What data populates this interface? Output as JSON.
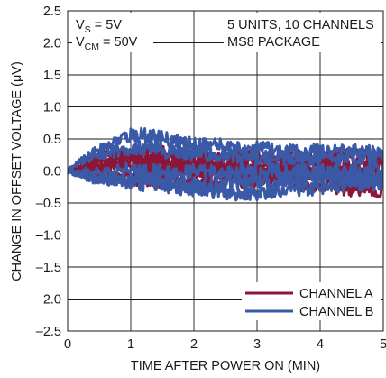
{
  "chart_data": {
    "type": "line",
    "title": "",
    "xlabel": "TIME AFTER POWER ON (MIN)",
    "ylabel": "CHANGE IN OFFSET VOLTAGE (μV)",
    "xlim": [
      0,
      5
    ],
    "ylim": [
      -2.5,
      2.5
    ],
    "x_ticks": [
      "0",
      "1",
      "2",
      "3",
      "4",
      "5"
    ],
    "y_ticks": [
      "2.5",
      "2.0",
      "1.5",
      "1.0",
      "0.5",
      "0.0",
      "–0.5",
      "–1.0",
      "–1.5",
      "–2.0",
      "–2.5"
    ],
    "grid": true,
    "annotations": {
      "vs_main": "V",
      "vs_sub": "S",
      "vs_rest": " = 5V",
      "vcm_main": "V",
      "vcm_sub": "CM",
      "vcm_rest": " = 50V",
      "units_line1": "5 UNITS, 10 CHANNELS",
      "units_line2": "MS8 PACKAGE"
    },
    "legend": "bottom-right",
    "series": [
      {
        "name": "CHANNEL A",
        "color": "#8c1538",
        "x": [
          0,
          0.25,
          0.5,
          0.75,
          1.0,
          1.25,
          1.5,
          1.75,
          2.0,
          2.25,
          2.5,
          2.75,
          3.0,
          3.25,
          3.5,
          3.75,
          4.0,
          4.25,
          4.5,
          4.75,
          5.0
        ],
        "y": [
          0.0,
          0.18,
          0.25,
          0.3,
          0.32,
          0.3,
          0.28,
          0.22,
          0.2,
          0.18,
          0.2,
          0.22,
          0.2,
          0.18,
          0.2,
          0.22,
          0.2,
          0.22,
          0.25,
          0.22,
          0.2
        ]
      },
      {
        "name": "",
        "color": "#8c1538",
        "x": [
          0,
          0.25,
          0.5,
          0.75,
          1.0,
          1.25,
          1.5,
          1.75,
          2.0,
          2.25,
          2.5,
          2.75,
          3.0,
          3.25,
          3.5,
          3.75,
          4.0,
          4.25,
          4.5,
          4.75,
          5.0
        ],
        "y": [
          0.0,
          0.1,
          0.15,
          0.2,
          0.2,
          0.18,
          0.15,
          0.12,
          0.1,
          0.1,
          0.12,
          0.1,
          0.08,
          0.1,
          0.12,
          0.1,
          0.12,
          0.1,
          0.1,
          0.12,
          0.1
        ]
      },
      {
        "name": "",
        "color": "#8c1538",
        "x": [
          0,
          0.25,
          0.5,
          0.75,
          1.0,
          1.25,
          1.5,
          1.75,
          2.0,
          2.25,
          2.5,
          2.75,
          3.0,
          3.25,
          3.5,
          3.75,
          4.0,
          4.25,
          4.5,
          4.75,
          5.0
        ],
        "y": [
          0.0,
          0.05,
          0.05,
          0.08,
          0.05,
          0.02,
          0.0,
          0.0,
          -0.02,
          0.0,
          0.02,
          0.0,
          -0.02,
          0.0,
          0.02,
          0.0,
          0.0,
          0.02,
          0.0,
          0.0,
          0.02
        ]
      },
      {
        "name": "",
        "color": "#8c1538",
        "x": [
          0,
          0.25,
          0.5,
          0.75,
          1.0,
          1.25,
          1.5,
          1.75,
          2.0,
          2.25,
          2.5,
          2.75,
          3.0,
          3.25,
          3.5,
          3.75,
          4.0,
          4.25,
          4.5,
          4.75,
          5.0
        ],
        "y": [
          0.0,
          -0.05,
          -0.08,
          -0.1,
          -0.12,
          -0.12,
          -0.15,
          -0.18,
          -0.2,
          -0.2,
          -0.18,
          -0.15,
          -0.15,
          -0.12,
          -0.1,
          -0.12,
          -0.15,
          -0.18,
          -0.2,
          -0.18,
          -0.15
        ]
      },
      {
        "name": "",
        "color": "#8c1538",
        "x": [
          0,
          0.25,
          0.5,
          0.75,
          1.0,
          1.25,
          1.5,
          1.75,
          2.0,
          2.25,
          2.5,
          2.75,
          3.0,
          3.25,
          3.5,
          3.75,
          4.0,
          4.25,
          4.5,
          4.75,
          5.0
        ],
        "y": [
          0.0,
          0.08,
          0.1,
          0.12,
          0.15,
          0.12,
          0.1,
          0.05,
          0.02,
          -0.02,
          -0.05,
          -0.08,
          -0.1,
          -0.12,
          -0.15,
          -0.2,
          -0.22,
          -0.25,
          -0.28,
          -0.3,
          -0.32
        ]
      },
      {
        "name": "CHANNEL B",
        "color": "#3a5aa8",
        "x": [
          0,
          0.25,
          0.5,
          0.75,
          1.0,
          1.25,
          1.5,
          1.75,
          2.0,
          2.25,
          2.5,
          2.75,
          3.0,
          3.25,
          3.5,
          3.75,
          4.0,
          4.25,
          4.5,
          4.75,
          5.0
        ],
        "y": [
          0.0,
          0.2,
          0.35,
          0.45,
          0.55,
          0.55,
          0.5,
          0.45,
          0.42,
          0.4,
          0.38,
          0.35,
          0.35,
          0.32,
          0.3,
          0.3,
          0.32,
          0.3,
          0.3,
          0.28,
          0.3
        ]
      },
      {
        "name": "",
        "color": "#3a5aa8",
        "x": [
          0,
          0.25,
          0.5,
          0.75,
          1.0,
          1.25,
          1.5,
          1.75,
          2.0,
          2.25,
          2.5,
          2.75,
          3.0,
          3.25,
          3.5,
          3.75,
          4.0,
          4.25,
          4.5,
          4.75,
          5.0
        ],
        "y": [
          0.0,
          0.15,
          0.25,
          0.3,
          0.35,
          0.35,
          0.32,
          0.3,
          0.28,
          0.25,
          0.25,
          0.22,
          0.2,
          0.22,
          0.2,
          0.18,
          0.2,
          0.18,
          0.2,
          0.18,
          0.2
        ]
      },
      {
        "name": "",
        "color": "#3a5aa8",
        "x": [
          0,
          0.25,
          0.5,
          0.75,
          1.0,
          1.25,
          1.5,
          1.75,
          2.0,
          2.25,
          2.5,
          2.75,
          3.0,
          3.25,
          3.5,
          3.75,
          4.0,
          4.25,
          4.5,
          4.75,
          5.0
        ],
        "y": [
          0.0,
          0.0,
          -0.02,
          0.0,
          0.02,
          0.0,
          -0.02,
          -0.02,
          0.0,
          -0.02,
          -0.02,
          0.0,
          -0.02,
          0.0,
          -0.02,
          0.0,
          0.0,
          -0.02,
          0.0,
          -0.02,
          0.0
        ]
      },
      {
        "name": "",
        "color": "#3a5aa8",
        "x": [
          0,
          0.25,
          0.5,
          0.75,
          1.0,
          1.25,
          1.5,
          1.75,
          2.0,
          2.25,
          2.5,
          2.75,
          3.0,
          3.25,
          3.5,
          3.75,
          4.0,
          4.25,
          4.5,
          4.75,
          5.0
        ],
        "y": [
          0.0,
          -0.1,
          -0.15,
          -0.15,
          -0.12,
          -0.12,
          -0.15,
          -0.18,
          -0.2,
          -0.22,
          -0.2,
          -0.18,
          -0.15,
          -0.15,
          -0.12,
          -0.12,
          -0.1,
          -0.1,
          -0.12,
          -0.1,
          -0.1
        ]
      },
      {
        "name": "",
        "color": "#3a5aa8",
        "x": [
          0,
          0.25,
          0.5,
          0.75,
          1.0,
          1.25,
          1.5,
          1.75,
          2.0,
          2.25,
          2.5,
          2.75,
          3.0,
          3.25,
          3.5,
          3.75,
          4.0,
          4.25,
          4.5,
          4.75,
          5.0
        ],
        "y": [
          0.0,
          -0.08,
          -0.12,
          -0.15,
          -0.18,
          -0.2,
          -0.22,
          -0.25,
          -0.28,
          -0.3,
          -0.32,
          -0.35,
          -0.35,
          -0.32,
          -0.3,
          -0.28,
          -0.25,
          -0.22,
          -0.2,
          -0.22,
          -0.2
        ]
      }
    ]
  }
}
